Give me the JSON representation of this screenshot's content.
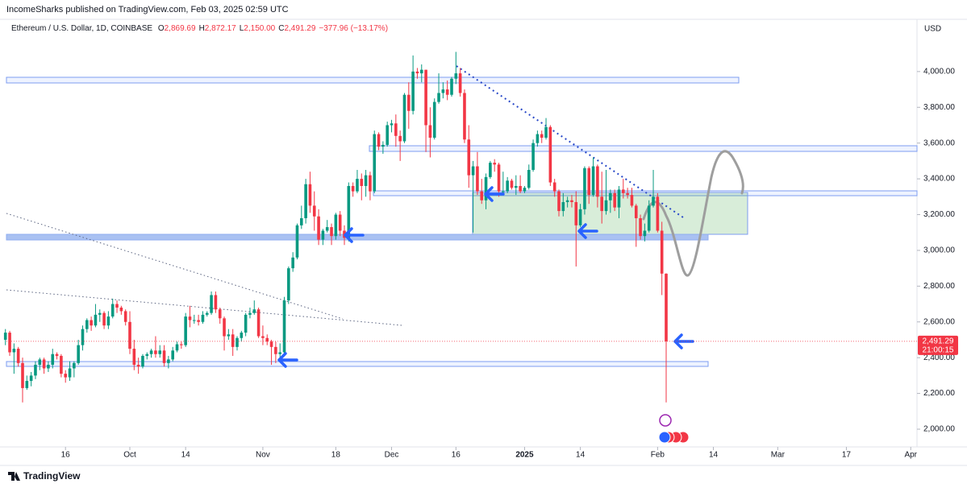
{
  "header": {
    "published": "IncomeSharks published on TradingView.com, Feb 03, 2025 02:59 UTC"
  },
  "chart_data": {
    "type": "candlestick",
    "title": "Ethereum / U.S. Dollar, 1D, COINBASE",
    "ohlc_legend": [
      {
        "key": "O",
        "value": "2,869.69"
      },
      {
        "key": "H",
        "value": "2,872.17"
      },
      {
        "key": "L",
        "value": "2,150.00"
      },
      {
        "key": "C",
        "value": "2,491.29"
      }
    ],
    "change": "−377.96 (−13.17%)",
    "currency": "USD",
    "up_color": "#089981",
    "down_color": "#f23645",
    "categories": [
      "09-02",
      "09-03",
      "09-04",
      "09-05",
      "09-06",
      "09-07",
      "09-08",
      "09-09",
      "09-10",
      "09-11",
      "09-12",
      "09-13",
      "09-14",
      "09-15",
      "09-16",
      "09-17",
      "09-18",
      "09-19",
      "09-20",
      "09-21",
      "09-22",
      "09-23",
      "09-24",
      "09-25",
      "09-26",
      "09-27",
      "09-28",
      "09-29",
      "09-30",
      "10-01",
      "10-02",
      "10-03",
      "10-04",
      "10-05",
      "10-06",
      "10-07",
      "10-08",
      "10-09",
      "10-10",
      "10-11",
      "10-12",
      "10-13",
      "10-14",
      "10-15",
      "10-16",
      "10-17",
      "10-18",
      "10-19",
      "10-20",
      "10-21",
      "10-22",
      "10-23",
      "10-24",
      "10-25",
      "10-26",
      "10-27",
      "10-28",
      "10-29",
      "10-30",
      "10-31",
      "11-01",
      "11-02",
      "11-03",
      "11-04",
      "11-05",
      "11-06",
      "11-07",
      "11-08",
      "11-09",
      "11-10",
      "11-11",
      "11-12",
      "11-13",
      "11-14",
      "11-15",
      "11-16",
      "11-17",
      "11-18",
      "11-19",
      "11-20",
      "11-21",
      "11-22",
      "11-23",
      "11-24",
      "11-25",
      "11-26",
      "11-27",
      "11-28",
      "11-29",
      "11-30",
      "12-01",
      "12-02",
      "12-03",
      "12-04",
      "12-05",
      "12-06",
      "12-07",
      "12-08",
      "12-09",
      "12-10",
      "12-11",
      "12-12",
      "12-13",
      "12-14",
      "12-15",
      "12-16",
      "12-17",
      "12-18",
      "12-19",
      "12-20",
      "12-21",
      "12-22",
      "12-23",
      "12-24",
      "12-25",
      "12-26",
      "12-27",
      "12-28",
      "12-29",
      "12-30",
      "12-31",
      "01-01",
      "01-02",
      "01-03",
      "01-04",
      "01-05",
      "01-06",
      "01-07",
      "01-08",
      "01-09",
      "01-10",
      "01-11",
      "01-12",
      "01-13",
      "01-14",
      "01-15",
      "01-16",
      "01-17",
      "01-18",
      "01-19",
      "01-20",
      "01-21",
      "01-22",
      "01-23",
      "01-24",
      "01-25",
      "01-26",
      "01-27",
      "01-28",
      "01-29",
      "01-30",
      "01-31",
      "02-01",
      "02-02",
      "02-03"
    ],
    "values": [
      [
        2500,
        2560,
        2470,
        2540
      ],
      [
        2540,
        2550,
        2410,
        2430
      ],
      [
        2430,
        2480,
        2310,
        2450
      ],
      [
        2450,
        2460,
        2350,
        2370
      ],
      [
        2370,
        2400,
        2150,
        2230
      ],
      [
        2230,
        2300,
        2220,
        2270
      ],
      [
        2270,
        2320,
        2240,
        2300
      ],
      [
        2300,
        2380,
        2280,
        2360
      ],
      [
        2360,
        2400,
        2330,
        2390
      ],
      [
        2390,
        2400,
        2310,
        2340
      ],
      [
        2340,
        2380,
        2320,
        2360
      ],
      [
        2360,
        2450,
        2340,
        2420
      ],
      [
        2420,
        2430,
        2390,
        2410
      ],
      [
        2410,
        2420,
        2290,
        2310
      ],
      [
        2310,
        2330,
        2260,
        2290
      ],
      [
        2290,
        2380,
        2270,
        2340
      ],
      [
        2340,
        2380,
        2290,
        2370
      ],
      [
        2370,
        2500,
        2360,
        2470
      ],
      [
        2470,
        2580,
        2440,
        2560
      ],
      [
        2560,
        2620,
        2540,
        2610
      ],
      [
        2610,
        2630,
        2550,
        2580
      ],
      [
        2580,
        2700,
        2570,
        2640
      ],
      [
        2640,
        2670,
        2600,
        2650
      ],
      [
        2650,
        2660,
        2560,
        2580
      ],
      [
        2580,
        2660,
        2560,
        2630
      ],
      [
        2630,
        2730,
        2620,
        2700
      ],
      [
        2700,
        2720,
        2650,
        2680
      ],
      [
        2680,
        2690,
        2640,
        2660
      ],
      [
        2660,
        2670,
        2580,
        2600
      ],
      [
        2600,
        2660,
        2420,
        2450
      ],
      [
        2450,
        2500,
        2330,
        2360
      ],
      [
        2360,
        2400,
        2310,
        2350
      ],
      [
        2350,
        2420,
        2340,
        2410
      ],
      [
        2410,
        2430,
        2390,
        2420
      ],
      [
        2420,
        2450,
        2400,
        2440
      ],
      [
        2440,
        2520,
        2400,
        2420
      ],
      [
        2420,
        2470,
        2400,
        2440
      ],
      [
        2440,
        2470,
        2350,
        2370
      ],
      [
        2370,
        2410,
        2340,
        2390
      ],
      [
        2390,
        2460,
        2380,
        2440
      ],
      [
        2440,
        2490,
        2430,
        2475
      ],
      [
        2475,
        2490,
        2450,
        2470
      ],
      [
        2470,
        2650,
        2460,
        2630
      ],
      [
        2630,
        2690,
        2570,
        2610
      ],
      [
        2610,
        2640,
        2590,
        2610
      ],
      [
        2610,
        2640,
        2580,
        2600
      ],
      [
        2600,
        2660,
        2590,
        2640
      ],
      [
        2640,
        2660,
        2630,
        2650
      ],
      [
        2650,
        2770,
        2640,
        2750
      ],
      [
        2750,
        2770,
        2650,
        2670
      ],
      [
        2670,
        2680,
        2590,
        2620
      ],
      [
        2620,
        2630,
        2440,
        2520
      ],
      [
        2520,
        2560,
        2500,
        2530
      ],
      [
        2530,
        2560,
        2410,
        2460
      ],
      [
        2460,
        2520,
        2440,
        2510
      ],
      [
        2510,
        2550,
        2490,
        2540
      ],
      [
        2540,
        2650,
        2520,
        2640
      ],
      [
        2640,
        2680,
        2620,
        2650
      ],
      [
        2650,
        2720,
        2640,
        2670
      ],
      [
        2670,
        2680,
        2510,
        2520
      ],
      [
        2520,
        2580,
        2470,
        2510
      ],
      [
        2510,
        2530,
        2470,
        2490
      ],
      [
        2490,
        2500,
        2360,
        2460
      ],
      [
        2460,
        2490,
        2370,
        2420
      ],
      [
        2420,
        2480,
        2400,
        2430
      ],
      [
        2430,
        2740,
        2420,
        2720
      ],
      [
        2720,
        2910,
        2700,
        2900
      ],
      [
        2900,
        2990,
        2880,
        2960
      ],
      [
        2960,
        3150,
        2950,
        3140
      ],
      [
        3140,
        3250,
        3120,
        3180
      ],
      [
        3180,
        3400,
        3150,
        3370
      ],
      [
        3370,
        3440,
        3210,
        3250
      ],
      [
        3250,
        3330,
        3110,
        3190
      ],
      [
        3190,
        3230,
        3030,
        3060
      ],
      [
        3060,
        3120,
        3030,
        3110
      ],
      [
        3110,
        3170,
        3100,
        3130
      ],
      [
        3130,
        3150,
        3030,
        3080
      ],
      [
        3080,
        3210,
        3060,
        3200
      ],
      [
        3200,
        3220,
        3080,
        3110
      ],
      [
        3110,
        3140,
        3030,
        3070
      ],
      [
        3070,
        3380,
        3050,
        3360
      ],
      [
        3360,
        3380,
        3300,
        3330
      ],
      [
        3330,
        3450,
        3320,
        3400
      ],
      [
        3400,
        3430,
        3280,
        3360
      ],
      [
        3360,
        3450,
        3300,
        3420
      ],
      [
        3420,
        3440,
        3280,
        3330
      ],
      [
        3330,
        3670,
        3320,
        3650
      ],
      [
        3650,
        3660,
        3560,
        3580
      ],
      [
        3580,
        3610,
        3540,
        3590
      ],
      [
        3590,
        3720,
        3580,
        3700
      ],
      [
        3700,
        3730,
        3660,
        3710
      ],
      [
        3710,
        3760,
        3580,
        3640
      ],
      [
        3640,
        3670,
        3500,
        3610
      ],
      [
        3610,
        3880,
        3600,
        3870
      ],
      [
        3870,
        3940,
        3680,
        3780
      ],
      [
        3780,
        4090,
        3760,
        4000
      ],
      [
        4000,
        4020,
        3960,
        3990
      ],
      [
        3990,
        4040,
        3940,
        4010
      ],
      [
        4010,
        4010,
        3550,
        3700
      ],
      [
        3700,
        3800,
        3520,
        3630
      ],
      [
        3630,
        3850,
        3620,
        3830
      ],
      [
        3830,
        3990,
        3820,
        3880
      ],
      [
        3880,
        3940,
        3850,
        3900
      ],
      [
        3900,
        3950,
        3840,
        3870
      ],
      [
        3870,
        3970,
        3860,
        3960
      ],
      [
        3960,
        4110,
        3930,
        3990
      ],
      [
        3990,
        4020,
        3860,
        3880
      ],
      [
        3880,
        3900,
        3600,
        3620
      ],
      [
        3620,
        3700,
        3350,
        3420
      ],
      [
        3420,
        3500,
        3100,
        3470
      ],
      [
        3470,
        3550,
        3310,
        3330
      ],
      [
        3330,
        3400,
        3260,
        3280
      ],
      [
        3280,
        3430,
        3230,
        3410
      ],
      [
        3410,
        3500,
        3400,
        3490
      ],
      [
        3490,
        3510,
        3440,
        3480
      ],
      [
        3480,
        3490,
        3300,
        3330
      ],
      [
        3330,
        3440,
        3320,
        3330
      ],
      [
        3330,
        3410,
        3320,
        3390
      ],
      [
        3390,
        3400,
        3340,
        3350
      ],
      [
        3350,
        3420,
        3310,
        3360
      ],
      [
        3360,
        3420,
        3320,
        3330
      ],
      [
        3330,
        3360,
        3320,
        3350
      ],
      [
        3350,
        3480,
        3340,
        3450
      ],
      [
        3450,
        3620,
        3440,
        3600
      ],
      [
        3600,
        3670,
        3580,
        3650
      ],
      [
        3650,
        3670,
        3600,
        3630
      ],
      [
        3630,
        3740,
        3620,
        3690
      ],
      [
        3690,
        3700,
        3360,
        3380
      ],
      [
        3380,
        3400,
        3300,
        3330
      ],
      [
        3330,
        3340,
        3190,
        3220
      ],
      [
        3220,
        3320,
        3190,
        3270
      ],
      [
        3270,
        3300,
        3240,
        3280
      ],
      [
        3280,
        3310,
        3240,
        3270
      ],
      [
        3270,
        3330,
        2910,
        3140
      ],
      [
        3140,
        3260,
        3130,
        3230
      ],
      [
        3230,
        3470,
        3200,
        3460
      ],
      [
        3460,
        3470,
        3260,
        3310
      ],
      [
        3310,
        3520,
        3300,
        3470
      ],
      [
        3470,
        3480,
        3240,
        3300
      ],
      [
        3300,
        3440,
        3150,
        3220
      ],
      [
        3220,
        3450,
        3200,
        3280
      ],
      [
        3280,
        3340,
        3210,
        3320
      ],
      [
        3320,
        3340,
        3220,
        3240
      ],
      [
        3240,
        3360,
        3180,
        3340
      ],
      [
        3340,
        3400,
        3290,
        3320
      ],
      [
        3320,
        3350,
        3290,
        3310
      ],
      [
        3310,
        3350,
        3240,
        3250
      ],
      [
        3250,
        3260,
        3020,
        3180
      ],
      [
        3180,
        3200,
        3060,
        3080
      ],
      [
        3080,
        3150,
        3050,
        3110
      ],
      [
        3110,
        3280,
        3100,
        3250
      ],
      [
        3250,
        3450,
        3240,
        3300
      ],
      [
        3300,
        3320,
        3100,
        3110
      ],
      [
        3110,
        3160,
        2750,
        2870
      ],
      [
        2869.69,
        2872.17,
        2150,
        2491.29
      ]
    ],
    "ylim": [
      1910,
      4220
    ],
    "yticks": [
      {
        "value": 2000,
        "label": "2,000.00"
      },
      {
        "value": 2200,
        "label": "2,200.00"
      },
      {
        "value": 2400,
        "label": "2,400.00"
      },
      {
        "value": 2600,
        "label": "2,600.00"
      },
      {
        "value": 2800,
        "label": "2,800.00"
      },
      {
        "value": 3000,
        "label": "3,000.00"
      },
      {
        "value": 3200,
        "label": "3,200.00"
      },
      {
        "value": 3400,
        "label": "3,400.00"
      },
      {
        "value": 3600,
        "label": "3,600.00"
      },
      {
        "value": 3800,
        "label": "3,800.00"
      },
      {
        "value": 4000,
        "label": "4,000.00"
      }
    ],
    "xticks": [
      {
        "value": "09-16",
        "label": "16"
      },
      {
        "value": "10-01",
        "label": "Oct"
      },
      {
        "value": "10-14",
        "label": "14"
      },
      {
        "value": "11-01",
        "label": "Nov"
      },
      {
        "value": "11-18",
        "label": "18"
      },
      {
        "value": "12-01",
        "label": "Dec"
      },
      {
        "value": "12-16",
        "label": "16"
      },
      {
        "value": "01-01",
        "label": "2025"
      },
      {
        "value": "01-14",
        "label": "14"
      },
      {
        "value": "02-01",
        "label": "Feb"
      },
      {
        "value": "02-14",
        "label": "14"
      },
      {
        "value": "03-01",
        "label": "Mar"
      },
      {
        "value": "03-17",
        "label": "17"
      },
      {
        "value": "04-01",
        "label": "Apr"
      }
    ],
    "last_price": {
      "value": 2491.29,
      "label": "2,491.29"
    },
    "countdown": "21:00:15"
  },
  "footer": {
    "brand": "TradingView"
  }
}
